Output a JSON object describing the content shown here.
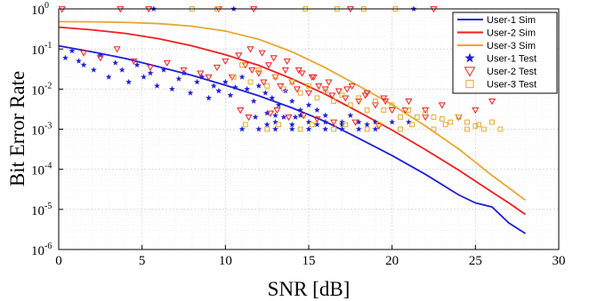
{
  "chart_data": {
    "type": "line",
    "xlabel": "SNR [dB]",
    "ylabel": "Bit Error Rate",
    "xlim": [
      0,
      30
    ],
    "ylim_log10": [
      -6,
      0
    ],
    "y_scale": "log",
    "grid": true,
    "legend_position": "top-right",
    "x_ticks": [
      "0",
      "5",
      "10",
      "15",
      "20",
      "25",
      "30"
    ],
    "y_ticks": [
      {
        "base": "10",
        "exp": "0"
      },
      {
        "base": "10",
        "exp": "-1"
      },
      {
        "base": "10",
        "exp": "-2"
      },
      {
        "base": "10",
        "exp": "-3"
      },
      {
        "base": "10",
        "exp": "-4"
      },
      {
        "base": "10",
        "exp": "-5"
      },
      {
        "base": "10",
        "exp": "-6"
      }
    ],
    "sim_series": [
      {
        "name": "User-1 Sim",
        "color": "#1f1fd6",
        "x": [
          0,
          2,
          4,
          6,
          8,
          10,
          12,
          14,
          16,
          18,
          20,
          22,
          24,
          25,
          26,
          27,
          28
        ],
        "y": [
          0.12,
          0.085,
          0.058,
          0.036,
          0.022,
          0.0125,
          0.0068,
          0.0034,
          0.00155,
          0.00059,
          0.00022,
          7.5e-05,
          2.3e-05,
          1.45e-05,
          1.15e-05,
          4.6e-06,
          2.5e-06
        ]
      },
      {
        "name": "User-2 Sim",
        "color": "#ee1f1f",
        "x": [
          0,
          2,
          4,
          6,
          8,
          10,
          12,
          14,
          16,
          18,
          20,
          22,
          24,
          26,
          27,
          28
        ],
        "y": [
          0.35,
          0.3,
          0.245,
          0.18,
          0.12,
          0.072,
          0.039,
          0.018,
          0.0074,
          0.0027,
          0.00095,
          0.00031,
          9.5e-05,
          2.7e-05,
          1.45e-05,
          7.5e-06
        ]
      },
      {
        "name": "User-3 Sim",
        "color": "#e6a830",
        "x": [
          0,
          2,
          4,
          6,
          8,
          10,
          12,
          14,
          16,
          18,
          20,
          22,
          24,
          26,
          28
        ],
        "y": [
          0.48,
          0.475,
          0.46,
          0.43,
          0.37,
          0.28,
          0.175,
          0.085,
          0.034,
          0.012,
          0.0041,
          0.0012,
          0.00032,
          7e-05,
          1.7e-05
        ]
      }
    ],
    "test_series": [
      {
        "name": "User-1 Test",
        "color": "#1f1fd6",
        "marker": "star",
        "x": [
          0.4,
          0.8,
          1.2,
          1.5,
          2.1,
          2.5,
          3.0,
          3.4,
          3.8,
          4.2,
          4.7,
          5.1,
          5.5,
          5.9,
          6.3,
          6.8,
          7.2,
          7.5,
          7.9,
          8.3,
          8.6,
          9.0,
          9.3,
          9.6,
          10.0,
          10.3,
          10.6,
          11.0,
          11.3,
          11.7,
          12.0,
          12.4,
          12.8,
          13.2,
          13.6,
          14.0,
          14.5,
          15.0,
          15.5,
          11.8,
          12.5,
          13.0,
          13.5,
          14.2,
          15.0,
          16.0,
          17.0,
          18.0,
          19.0,
          20.0,
          21.0,
          12.0,
          13.0,
          14.0,
          15.0,
          16.0,
          17.0,
          18.0,
          19.0,
          11.0,
          12.5,
          14.0,
          15.5,
          17.0,
          18.5,
          13.0,
          14.5,
          16.0,
          17.5,
          5.7,
          10.5,
          21.3
        ],
        "y": [
          0.06,
          0.09,
          0.05,
          0.04,
          0.03,
          0.07,
          0.02,
          0.045,
          0.03,
          0.015,
          0.04,
          0.02,
          0.025,
          0.012,
          0.03,
          0.01,
          0.018,
          0.025,
          0.008,
          0.015,
          0.02,
          0.006,
          0.012,
          0.009,
          0.015,
          0.007,
          0.011,
          0.02,
          0.01,
          0.005,
          0.012,
          0.008,
          0.006,
          0.004,
          0.009,
          0.005,
          0.003,
          0.004,
          0.003,
          0.002,
          0.0025,
          0.0015,
          0.002,
          0.002,
          0.0015,
          0.0015,
          0.0015,
          0.0015,
          0.0015,
          0.0015,
          0.0015,
          0.001,
          0.001,
          0.001,
          0.001,
          0.001,
          0.001,
          0.001,
          0.001,
          0.001,
          0.0013,
          0.0013,
          0.0013,
          0.0013,
          0.0013,
          0.0022,
          0.0022,
          0.0022,
          0.0022,
          1.0,
          1.0,
          1.0
        ]
      },
      {
        "name": "User-2 Test",
        "color": "#ee1f1f",
        "marker": "triangle",
        "x": [
          1.5,
          2.5,
          3.5,
          4.5,
          5.5,
          6.5,
          7.5,
          8.5,
          9.0,
          9.5,
          10.0,
          10.4,
          10.8,
          11.2,
          11.6,
          12.0,
          12.3,
          12.6,
          13.0,
          13.3,
          13.6,
          14.0,
          14.3,
          14.6,
          15.0,
          15.3,
          15.6,
          16.0,
          16.4,
          16.8,
          17.2,
          17.6,
          18.0,
          18.5,
          19.0,
          19.5,
          20.0,
          21.0,
          22.0,
          23.0,
          24.0,
          25.0,
          26.0,
          11.5,
          12.2,
          12.9,
          13.7,
          14.4,
          15.2,
          16.2,
          17.3,
          18.4,
          19.6,
          20.8,
          22.0,
          10.9,
          11.4,
          12.7,
          13.1,
          13.8,
          14.7,
          15.5,
          16.5,
          17.8,
          19.2,
          0.2,
          3.7,
          5.4,
          9.6,
          11.7,
          17.5,
          22.5
        ],
        "y": [
          0.08,
          0.06,
          0.1,
          0.05,
          0.035,
          0.045,
          0.03,
          0.025,
          0.02,
          0.035,
          0.05,
          0.02,
          0.07,
          0.04,
          0.03,
          0.025,
          0.015,
          0.04,
          0.02,
          0.012,
          0.03,
          0.015,
          0.01,
          0.025,
          0.008,
          0.02,
          0.012,
          0.01,
          0.007,
          0.009,
          0.006,
          0.012,
          0.005,
          0.008,
          0.004,
          0.006,
          0.003,
          0.005,
          0.003,
          0.004,
          0.002,
          0.003,
          0.005,
          0.1,
          0.08,
          0.06,
          0.05,
          0.03,
          0.02,
          0.015,
          0.01,
          0.007,
          0.005,
          0.003,
          0.002,
          0.003,
          0.002,
          0.0025,
          0.003,
          0.002,
          0.0022,
          0.0018,
          0.0015,
          0.0015,
          0.0012,
          1.0,
          1.0,
          1.0,
          1.0,
          1.0,
          1.0,
          1.0
        ]
      },
      {
        "name": "User-3 Test",
        "color": "#e6a830",
        "marker": "square",
        "x": [
          10.5,
          11.0,
          11.5,
          12.0,
          12.5,
          13.0,
          13.5,
          14.0,
          14.5,
          15.0,
          15.5,
          16.0,
          16.5,
          17.0,
          17.5,
          18.0,
          18.5,
          19.0,
          19.5,
          20.0,
          20.5,
          21.0,
          21.5,
          22.0,
          22.5,
          23.0,
          23.5,
          24.0,
          24.5,
          25.0,
          25.5,
          26.0,
          26.5,
          12.5,
          14.5,
          16.5,
          18.5,
          20.5,
          22.5,
          24.5,
          11.2,
          13.2,
          15.2,
          17.2,
          19.2,
          21.2,
          23.2,
          25.2,
          8.0,
          9.5,
          14.8,
          16.7,
          18.3,
          20.2
        ],
        "y": [
          0.02,
          0.04,
          0.015,
          0.03,
          0.012,
          0.02,
          0.01,
          0.015,
          0.008,
          0.012,
          0.006,
          0.009,
          0.005,
          0.007,
          0.004,
          0.006,
          0.003,
          0.005,
          0.003,
          0.004,
          0.002,
          0.003,
          0.002,
          0.0025,
          0.002,
          0.0018,
          0.0015,
          0.002,
          0.0015,
          0.0012,
          0.001,
          0.0015,
          0.001,
          0.001,
          0.001,
          0.001,
          0.001,
          0.001,
          0.001,
          0.001,
          0.0013,
          0.0013,
          0.0013,
          0.0013,
          0.0013,
          0.0013,
          0.0013,
          0.0013,
          1.0,
          1.0,
          1.0,
          1.0,
          1.0,
          1.0
        ]
      }
    ]
  }
}
